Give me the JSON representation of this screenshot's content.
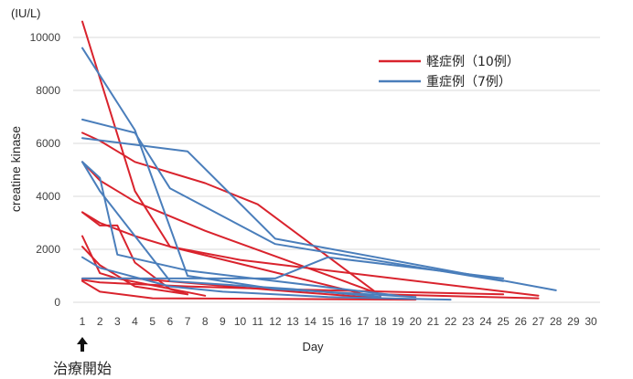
{
  "chart_data": {
    "type": "line",
    "unit_label": "(IU/L)",
    "ylabel": "creatine kinase",
    "xlabel": "Day",
    "xlim": [
      1,
      30
    ],
    "ylim": [
      0,
      10000
    ],
    "x_ticks": [
      1,
      2,
      3,
      4,
      5,
      6,
      7,
      8,
      9,
      10,
      11,
      12,
      13,
      14,
      15,
      16,
      17,
      18,
      19,
      20,
      21,
      22,
      23,
      24,
      25,
      26,
      27,
      28,
      29,
      30
    ],
    "y_ticks": [
      0,
      2000,
      4000,
      6000,
      8000,
      10000
    ],
    "grid": "horizontal",
    "legend_position": "top-right",
    "legend": [
      {
        "label": "軽症例（10例）",
        "color": "#d9232d"
      },
      {
        "label": "重症例（7例）",
        "color": "#4a7ebb"
      }
    ],
    "annotation": {
      "label": "治療開始",
      "day": 1,
      "marker": "up-arrow"
    },
    "series": [
      {
        "group": "mild",
        "x": [
          1,
          4,
          6,
          18
        ],
        "y": [
          10600,
          4200,
          2100,
          150
        ]
      },
      {
        "group": "mild",
        "x": [
          1,
          2,
          4,
          8,
          11,
          18
        ],
        "y": [
          6400,
          6100,
          5300,
          4500,
          3700,
          250
        ]
      },
      {
        "group": "mild",
        "x": [
          1,
          2,
          4,
          8,
          18,
          27
        ],
        "y": [
          5300,
          4600,
          3800,
          2700,
          300,
          150
        ]
      },
      {
        "group": "mild",
        "x": [
          1,
          2,
          3,
          4,
          6,
          7
        ],
        "y": [
          3400,
          2900,
          2900,
          1500,
          500,
          300
        ]
      },
      {
        "group": "mild",
        "x": [
          1,
          2,
          4,
          6,
          10,
          27
        ],
        "y": [
          3400,
          3000,
          2500,
          2100,
          1600,
          250
        ]
      },
      {
        "group": "mild",
        "x": [
          1,
          2,
          3,
          8
        ],
        "y": [
          2500,
          1100,
          900,
          250
        ]
      },
      {
        "group": "mild",
        "x": [
          1,
          2,
          4,
          7
        ],
        "y": [
          2100,
          1400,
          600,
          300
        ]
      },
      {
        "group": "mild",
        "x": [
          1,
          4,
          13,
          18
        ],
        "y": [
          900,
          900,
          400,
          150
        ]
      },
      {
        "group": "mild",
        "x": [
          1,
          2,
          7,
          12,
          25
        ],
        "y": [
          850,
          750,
          600,
          500,
          300
        ]
      },
      {
        "group": "mild",
        "x": [
          1,
          2,
          5,
          20
        ],
        "y": [
          800,
          400,
          150,
          100
        ]
      },
      {
        "group": "severe",
        "x": [
          1,
          4,
          7,
          12,
          20
        ],
        "y": [
          9600,
          6500,
          1000,
          500,
          200
        ]
      },
      {
        "group": "severe",
        "x": [
          1,
          4,
          6,
          12,
          25
        ],
        "y": [
          6900,
          6400,
          4300,
          2200,
          800
        ]
      },
      {
        "group": "severe",
        "x": [
          1,
          7,
          12,
          28
        ],
        "y": [
          6200,
          5700,
          2400,
          450
        ]
      },
      {
        "group": "severe",
        "x": [
          1,
          2,
          3,
          7,
          19
        ],
        "y": [
          5300,
          4700,
          1800,
          1200,
          250
        ]
      },
      {
        "group": "severe",
        "x": [
          1,
          2,
          6,
          13,
          18
        ],
        "y": [
          5300,
          4200,
          800,
          500,
          200
        ]
      },
      {
        "group": "severe",
        "x": [
          1,
          2,
          6,
          9,
          15,
          22
        ],
        "y": [
          1700,
          1300,
          600,
          400,
          200,
          100
        ]
      },
      {
        "group": "severe",
        "x": [
          1,
          12,
          15,
          25
        ],
        "y": [
          900,
          900,
          1700,
          900
        ]
      }
    ]
  }
}
